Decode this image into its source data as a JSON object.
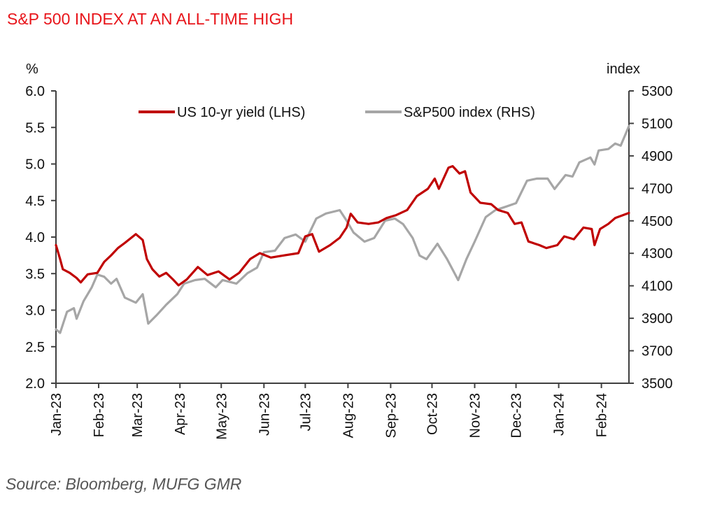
{
  "title": "S&P 500 INDEX AT AN ALL-TIME HIGH",
  "source": "Source: Bloomberg, MUFG GMR",
  "colors": {
    "yield": "#c00000",
    "spx": "#a6a6a6",
    "title": "#e8141a",
    "axis": "#404040"
  },
  "chart_data": {
    "type": "line",
    "title": "S&P 500 INDEX AT AN ALL-TIME HIGH",
    "xlabel": "",
    "ylabel_left": "%",
    "ylabel_right": "index",
    "x_range": [
      "2023-01-01",
      "2024-02-21"
    ],
    "ylim_left": [
      2.0,
      6.0
    ],
    "ylim_right": [
      3500,
      5300
    ],
    "yticks_left": [
      "6.0",
      "5.5",
      "5.0",
      "4.5",
      "4.0",
      "3.5",
      "3.0",
      "2.5",
      "2.0"
    ],
    "yticks_right": [
      "5300",
      "5100",
      "4900",
      "4700",
      "4500",
      "4300",
      "4100",
      "3900",
      "3700",
      "3500"
    ],
    "xticks": [
      {
        "label": "Jan-23",
        "date": "2023-01-01"
      },
      {
        "label": "Feb-23",
        "date": "2023-02-01"
      },
      {
        "label": "Mar-23",
        "date": "2023-03-01"
      },
      {
        "label": "Apr-23",
        "date": "2023-04-01"
      },
      {
        "label": "May-23",
        "date": "2023-05-01"
      },
      {
        "label": "Jun-23",
        "date": "2023-06-01"
      },
      {
        "label": "Jul-23",
        "date": "2023-07-01"
      },
      {
        "label": "Aug-23",
        "date": "2023-08-01"
      },
      {
        "label": "Sep-23",
        "date": "2023-09-01"
      },
      {
        "label": "Oct-23",
        "date": "2023-10-01"
      },
      {
        "label": "Nov-23",
        "date": "2023-11-01"
      },
      {
        "label": "Dec-23",
        "date": "2023-12-01"
      },
      {
        "label": "Jan-24",
        "date": "2024-01-01"
      },
      {
        "label": "Feb-24",
        "date": "2024-02-01"
      }
    ],
    "legend": {
      "position": "top-center",
      "entries": [
        "US 10-yr yield (LHS)",
        "S&P500 index (RHS)"
      ]
    },
    "grid": false,
    "series": [
      {
        "name": "US 10-yr yield (LHS)",
        "axis": "left",
        "points": [
          [
            "2023-01-01",
            3.89
          ],
          [
            "2023-01-04",
            3.7
          ],
          [
            "2023-01-06",
            3.56
          ],
          [
            "2023-01-11",
            3.51
          ],
          [
            "2023-01-16",
            3.44
          ],
          [
            "2023-01-19",
            3.38
          ],
          [
            "2023-01-24",
            3.49
          ],
          [
            "2023-01-31",
            3.51
          ],
          [
            "2023-02-05",
            3.66
          ],
          [
            "2023-02-10",
            3.75
          ],
          [
            "2023-02-15",
            3.85
          ],
          [
            "2023-02-20",
            3.92
          ],
          [
            "2023-02-28",
            4.04
          ],
          [
            "2023-03-05",
            3.96
          ],
          [
            "2023-03-08",
            3.7
          ],
          [
            "2023-03-12",
            3.56
          ],
          [
            "2023-03-17",
            3.46
          ],
          [
            "2023-03-22",
            3.51
          ],
          [
            "2023-03-27",
            3.42
          ],
          [
            "2023-03-31",
            3.34
          ],
          [
            "2023-04-06",
            3.42
          ],
          [
            "2023-04-14",
            3.59
          ],
          [
            "2023-04-21",
            3.48
          ],
          [
            "2023-04-29",
            3.53
          ],
          [
            "2023-05-07",
            3.42
          ],
          [
            "2023-05-14",
            3.51
          ],
          [
            "2023-05-22",
            3.7
          ],
          [
            "2023-05-29",
            3.78
          ],
          [
            "2023-06-06",
            3.72
          ],
          [
            "2023-06-16",
            3.75
          ],
          [
            "2023-06-26",
            3.78
          ],
          [
            "2023-07-01",
            4.01
          ],
          [
            "2023-07-06",
            4.04
          ],
          [
            "2023-07-11",
            3.8
          ],
          [
            "2023-07-19",
            3.89
          ],
          [
            "2023-07-26",
            3.99
          ],
          [
            "2023-07-31",
            4.13
          ],
          [
            "2023-08-03",
            4.32
          ],
          [
            "2023-08-08",
            4.2
          ],
          [
            "2023-08-16",
            4.18
          ],
          [
            "2023-08-23",
            4.2
          ],
          [
            "2023-08-29",
            4.26
          ],
          [
            "2023-09-05",
            4.3
          ],
          [
            "2023-09-13",
            4.37
          ],
          [
            "2023-09-20",
            4.56
          ],
          [
            "2023-09-28",
            4.66
          ],
          [
            "2023-10-03",
            4.8
          ],
          [
            "2023-10-06",
            4.66
          ],
          [
            "2023-10-13",
            4.95
          ],
          [
            "2023-10-16",
            4.97
          ],
          [
            "2023-10-21",
            4.87
          ],
          [
            "2023-10-25",
            4.9
          ],
          [
            "2023-10-29",
            4.61
          ],
          [
            "2023-11-05",
            4.47
          ],
          [
            "2023-11-13",
            4.45
          ],
          [
            "2023-11-18",
            4.37
          ],
          [
            "2023-11-25",
            4.33
          ],
          [
            "2023-11-30",
            4.18
          ],
          [
            "2023-12-05",
            4.2
          ],
          [
            "2023-12-10",
            3.94
          ],
          [
            "2023-12-18",
            3.89
          ],
          [
            "2023-12-23",
            3.85
          ],
          [
            "2023-12-31",
            3.89
          ],
          [
            "2024-01-05",
            4.01
          ],
          [
            "2024-01-12",
            3.97
          ],
          [
            "2024-01-19",
            4.13
          ],
          [
            "2024-01-25",
            4.11
          ],
          [
            "2024-01-27",
            3.89
          ],
          [
            "2024-01-31",
            4.11
          ],
          [
            "2024-02-06",
            4.18
          ],
          [
            "2024-02-11",
            4.26
          ],
          [
            "2024-02-21",
            4.33
          ]
        ]
      },
      {
        "name": "S&P500 index (RHS)",
        "axis": "right",
        "points": [
          [
            "2023-01-01",
            3832
          ],
          [
            "2023-01-04",
            3810
          ],
          [
            "2023-01-09",
            3940
          ],
          [
            "2023-01-14",
            3962
          ],
          [
            "2023-01-16",
            3897
          ],
          [
            "2023-01-21",
            4005
          ],
          [
            "2023-01-27",
            4091
          ],
          [
            "2023-01-31",
            4169
          ],
          [
            "2023-02-05",
            4156
          ],
          [
            "2023-02-10",
            4113
          ],
          [
            "2023-02-14",
            4143
          ],
          [
            "2023-02-20",
            4027
          ],
          [
            "2023-02-28",
            3996
          ],
          [
            "2023-03-05",
            4048
          ],
          [
            "2023-03-09",
            3867
          ],
          [
            "2023-03-15",
            3918
          ],
          [
            "2023-03-22",
            3983
          ],
          [
            "2023-03-30",
            4048
          ],
          [
            "2023-04-04",
            4113
          ],
          [
            "2023-04-12",
            4135
          ],
          [
            "2023-04-19",
            4143
          ],
          [
            "2023-04-27",
            4091
          ],
          [
            "2023-05-02",
            4135
          ],
          [
            "2023-05-12",
            4113
          ],
          [
            "2023-05-20",
            4178
          ],
          [
            "2023-05-27",
            4212
          ],
          [
            "2023-06-01",
            4307
          ],
          [
            "2023-06-09",
            4316
          ],
          [
            "2023-06-16",
            4394
          ],
          [
            "2023-06-24",
            4416
          ],
          [
            "2023-07-01",
            4372
          ],
          [
            "2023-07-09",
            4514
          ],
          [
            "2023-07-16",
            4545
          ],
          [
            "2023-07-26",
            4566
          ],
          [
            "2023-07-31",
            4501
          ],
          [
            "2023-08-05",
            4428
          ],
          [
            "2023-08-13",
            4372
          ],
          [
            "2023-08-20",
            4394
          ],
          [
            "2023-08-28",
            4501
          ],
          [
            "2023-09-04",
            4514
          ],
          [
            "2023-09-10",
            4480
          ],
          [
            "2023-09-17",
            4394
          ],
          [
            "2023-09-22",
            4286
          ],
          [
            "2023-09-27",
            4264
          ],
          [
            "2023-10-05",
            4359
          ],
          [
            "2023-10-12",
            4264
          ],
          [
            "2023-10-20",
            4135
          ],
          [
            "2023-10-26",
            4264
          ],
          [
            "2023-11-01",
            4372
          ],
          [
            "2023-11-09",
            4523
          ],
          [
            "2023-11-16",
            4566
          ],
          [
            "2023-11-24",
            4588
          ],
          [
            "2023-12-01",
            4609
          ],
          [
            "2023-12-09",
            4747
          ],
          [
            "2023-12-16",
            4760
          ],
          [
            "2023-12-24",
            4760
          ],
          [
            "2023-12-29",
            4696
          ],
          [
            "2024-01-06",
            4782
          ],
          [
            "2024-01-11",
            4773
          ],
          [
            "2024-01-16",
            4860
          ],
          [
            "2024-01-24",
            4890
          ],
          [
            "2024-01-27",
            4847
          ],
          [
            "2024-01-30",
            4933
          ],
          [
            "2024-02-06",
            4942
          ],
          [
            "2024-02-11",
            4976
          ],
          [
            "2024-02-15",
            4963
          ],
          [
            "2024-02-21",
            5084
          ]
        ]
      }
    ]
  }
}
